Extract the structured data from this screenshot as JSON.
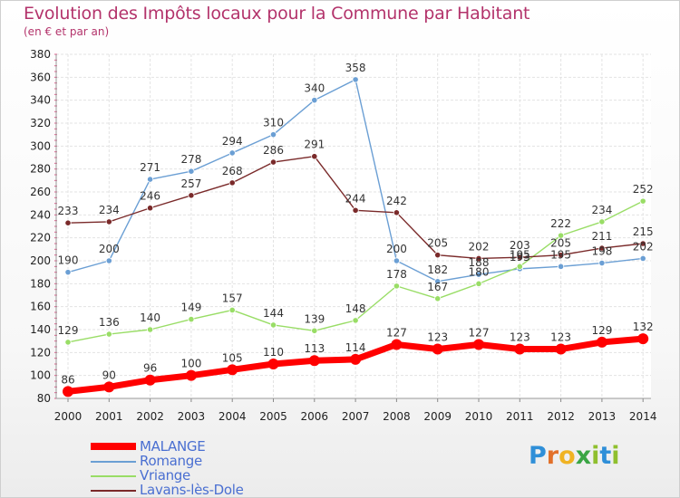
{
  "header": {
    "title": "Evolution des Impôts locaux pour la Commune par Habitant",
    "subtitle": "(en € et par an)"
  },
  "logo": {
    "text": "Proxiti"
  },
  "chart_data": {
    "type": "line",
    "title": "Evolution des Impôts locaux pour la Commune par Habitant",
    "subtitle": "(en € et par an)",
    "x": [
      "2000",
      "2001",
      "2002",
      "2003",
      "2004",
      "2005",
      "2006",
      "2007",
      "2008",
      "2009",
      "2010",
      "2011",
      "2012",
      "2013",
      "2014"
    ],
    "ylim": [
      80,
      380
    ],
    "yticks": [
      80,
      100,
      120,
      140,
      160,
      180,
      200,
      220,
      240,
      260,
      280,
      300,
      320,
      340,
      360,
      380
    ],
    "grid": true,
    "legend_position": "bottom-left",
    "series": [
      {
        "name": "MALANGE",
        "color": "#ff0000",
        "values": [
          86,
          90,
          96,
          100,
          105,
          110,
          113,
          114,
          127,
          123,
          127,
          123,
          123,
          129,
          132
        ]
      },
      {
        "name": "Romange",
        "color": "#6b9fd4",
        "values": [
          190,
          200,
          271,
          278,
          294,
          310,
          340,
          358,
          200,
          182,
          188,
          193,
          195,
          198,
          202
        ]
      },
      {
        "name": "Vriange",
        "color": "#99dd66",
        "values": [
          129,
          136,
          140,
          149,
          157,
          144,
          139,
          148,
          178,
          167,
          180,
          195,
          222,
          234,
          252
        ]
      },
      {
        "name": "Lavans-lès-Dole",
        "color": "#7a2a2a",
        "values": [
          233,
          234,
          246,
          257,
          268,
          286,
          291,
          244,
          242,
          205,
          202,
          203,
          205,
          211,
          215
        ]
      }
    ],
    "data_labels": {
      "MALANGE": [
        "86",
        "90",
        "96",
        "100",
        "105",
        "110",
        "113",
        "114",
        "127",
        "123",
        "127",
        "123",
        "123",
        "129",
        "132"
      ],
      "Romange": [
        "190",
        "200",
        "271",
        "278",
        "294",
        "310",
        "340",
        "358",
        "200",
        "182",
        "188",
        "193",
        "195",
        "198",
        "202"
      ],
      "Vriange": [
        "129",
        "136",
        "140",
        "149",
        "157",
        "144",
        "139",
        "148",
        "178",
        "167",
        "180",
        "195",
        "222",
        "234",
        "252"
      ],
      "Lavans-lès-Dole": [
        "233",
        "234",
        "246",
        "257",
        "268",
        "286",
        "291",
        "244",
        "242",
        "205",
        "202",
        "203",
        "205",
        "211",
        "215"
      ]
    }
  }
}
